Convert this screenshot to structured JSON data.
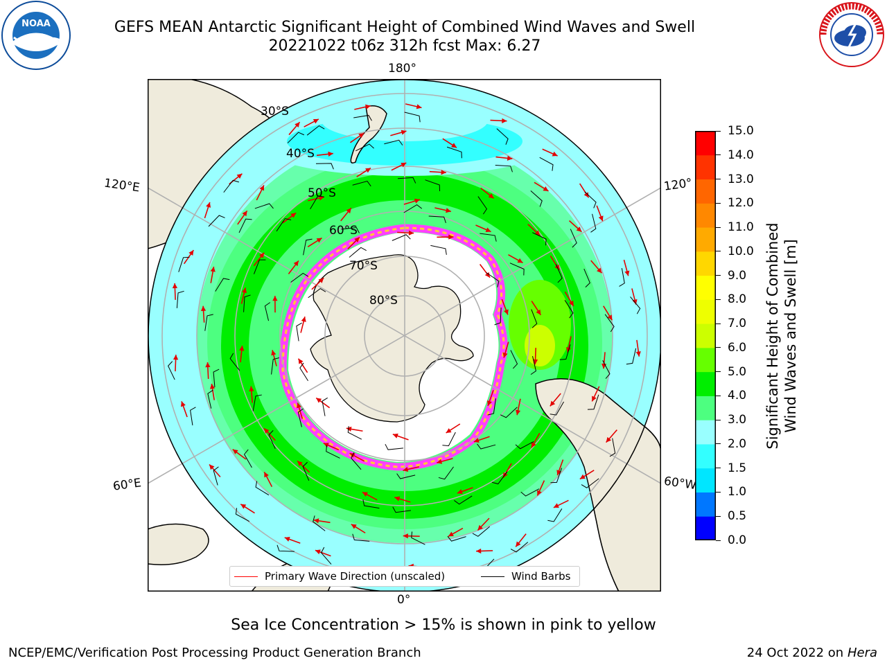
{
  "header": {
    "title_line1": "GEFS MEAN Antarctic Significant Height of Combined Wind Waves and Swell",
    "title_line2": "20221022 t06z 312h fcst   Max: 6.27"
  },
  "logos": {
    "left": {
      "text": "NOAA",
      "color": "#0d4c9a"
    },
    "right": {
      "text": "NATIONAL WEATHER SERVICE",
      "color": "#d9151b"
    }
  },
  "map": {
    "projection": "south-polar-stereographic",
    "longitude_labels": {
      "top": "180°",
      "bottom": "0°",
      "left_upper": "120°E",
      "left_lower": "60°E",
      "right_upper": "120°",
      "right_lower": "60°W"
    },
    "latitude_labels": [
      "30°S",
      "40°S",
      "50°S",
      "60°S",
      "70°S",
      "80°S"
    ],
    "land_color": "#efebdc",
    "wave_vector_color": "#e30000",
    "wind_barb_color": "#000000"
  },
  "legend": {
    "items": [
      {
        "label": "Primary Wave Direction (unscaled)",
        "color": "#ff0000"
      },
      {
        "label": "Wind Barbs",
        "color": "#000000"
      }
    ]
  },
  "colorbar": {
    "label_line1": "Significant Height of Combined",
    "label_line2": "Wind Waves and Swell [m]",
    "ticks": [
      "0.0",
      "0.5",
      "1.0",
      "1.5",
      "2.0",
      "3.0",
      "4.0",
      "5.0",
      "6.0",
      "7.0",
      "8.0",
      "9.0",
      "10.0",
      "11.0",
      "12.0",
      "13.0",
      "14.0",
      "15.0"
    ],
    "colors": [
      "#0000ff",
      "#0077ff",
      "#00e6ff",
      "#33ffff",
      "#99ffff",
      "#4dff80",
      "#00ee00",
      "#66ff00",
      "#ccff00",
      "#eeff00",
      "#ffff00",
      "#ffd700",
      "#ffaa00",
      "#ff8800",
      "#ff6600",
      "#ff3300",
      "#ff0000"
    ]
  },
  "sea_ice_note": "Sea Ice Concentration > 15% is shown in pink to yellow",
  "footer": {
    "left": "NCEP/EMC/Verification Post Processing Product Generation Branch",
    "right_date": "24 Oct 2022 on ",
    "right_host": "Hera"
  }
}
